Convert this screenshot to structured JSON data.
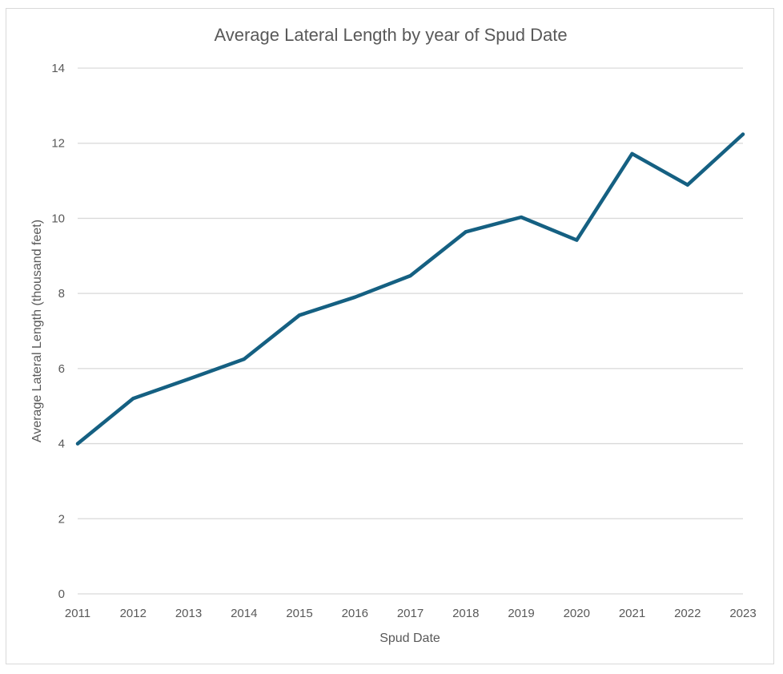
{
  "chart_data": {
    "type": "line",
    "title": "Average Lateral Length by year of Spud Date",
    "xlabel": "Spud Date",
    "ylabel": "Average Lateral Length (thousand feet)",
    "categories": [
      "2011",
      "2012",
      "2013",
      "2014",
      "2015",
      "2016",
      "2017",
      "2018",
      "2019",
      "2020",
      "2021",
      "2022",
      "2023"
    ],
    "series": [
      {
        "values": [
          4.0,
          5.2,
          5.72,
          6.25,
          7.42,
          7.9,
          8.47,
          9.64,
          10.03,
          9.42,
          11.72,
          10.89,
          12.24
        ],
        "color": "#156082"
      }
    ],
    "ylim": [
      0,
      14
    ],
    "yticks": [
      "0",
      "2",
      "4",
      "6",
      "8",
      "10",
      "12",
      "14"
    ],
    "grid": true,
    "legend": "none"
  }
}
